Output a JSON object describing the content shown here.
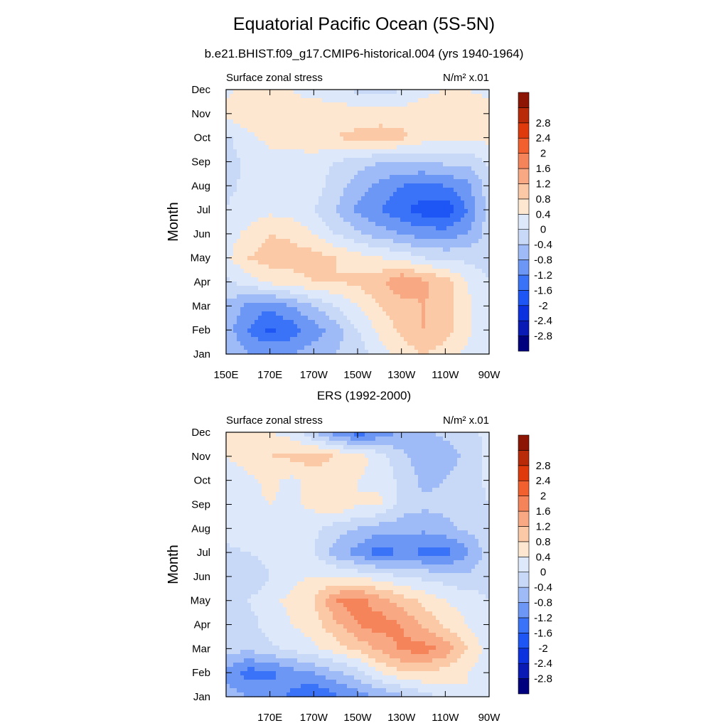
{
  "page": {
    "title": "Equatorial Pacific Ocean (5S-5N)",
    "top_subtitle": "b.e21.BHIST.f09_g17.CMIP6-historical.004 (yrs 1940-1964)",
    "bottom_subtitle": "ERS (1992-2000)"
  },
  "colorbar": {
    "levels": [
      "-2.8",
      "-2.4",
      "-2",
      "-1.6",
      "-1.2",
      "-0.8",
      "-0.4",
      "0",
      "0.4",
      "0.8",
      "1.2",
      "1.6",
      "2",
      "2.4",
      "2.8"
    ],
    "colors": [
      "#00007f",
      "#0a1ab4",
      "#0c32e0",
      "#1e55f5",
      "#3a73f7",
      "#6d97f5",
      "#9fbbf7",
      "#c8d9f8",
      "#dde9fa",
      "#fde7d0",
      "#fbc9a6",
      "#f8a882",
      "#f5845a",
      "#f2602f",
      "#de3a0c",
      "#b82a08",
      "#8c1504"
    ]
  },
  "chart_data": [
    {
      "type": "heatmap",
      "id": "model",
      "panel_title": "Surface zonal stress",
      "units": "N/m² x.01",
      "ylabel": "Month",
      "xlabel": "",
      "xlim": [
        150,
        270
      ],
      "x_ticks": [
        150,
        170,
        190,
        210,
        230,
        250,
        270
      ],
      "x_tick_labels": [
        "150E",
        "170E",
        "170W",
        "150W",
        "130W",
        "110W",
        "90W"
      ],
      "y_ticks": [
        "Jan",
        "Feb",
        "Mar",
        "Apr",
        "May",
        "Jun",
        "Jul",
        "Aug",
        "Sep",
        "Oct",
        "Nov",
        "Dec"
      ],
      "lon": [
        150,
        160,
        170,
        180,
        190,
        200,
        210,
        220,
        230,
        240,
        250,
        260,
        270
      ],
      "months": [
        "Jan",
        "Feb",
        "Mar",
        "Apr",
        "May",
        "Jun",
        "Jul",
        "Aug",
        "Sep",
        "Oct",
        "Nov",
        "Dec"
      ],
      "values": [
        [
          -0.4,
          -0.8,
          -0.8,
          -0.8,
          -0.6,
          -0.4,
          -0.2,
          0.2,
          0.6,
          0.8,
          0.6,
          0.3,
          0.0
        ],
        [
          -0.6,
          -1.2,
          -1.7,
          -1.4,
          -1.0,
          -0.6,
          0.0,
          0.5,
          0.9,
          1.2,
          1.0,
          0.5,
          0.1
        ],
        [
          -0.5,
          -0.9,
          -1.1,
          -0.8,
          -0.4,
          0.0,
          0.4,
          0.8,
          1.0,
          1.2,
          1.0,
          0.5,
          0.1
        ],
        [
          -0.1,
          0.2,
          0.5,
          0.6,
          0.8,
          0.8,
          0.9,
          1.1,
          1.6,
          1.3,
          1.0,
          0.4,
          0.0
        ],
        [
          0.3,
          0.8,
          1.0,
          1.0,
          1.0,
          0.8,
          0.6,
          0.4,
          0.3,
          0.0,
          -0.1,
          -0.1,
          -0.2
        ],
        [
          0.2,
          0.5,
          0.8,
          0.7,
          0.4,
          0.0,
          -0.3,
          -0.6,
          -0.8,
          -1.0,
          -1.0,
          -0.8,
          -0.2
        ],
        [
          0.0,
          0.2,
          0.3,
          0.2,
          0.0,
          -0.4,
          -0.9,
          -1.2,
          -1.5,
          -1.8,
          -1.9,
          -1.2,
          -0.2
        ],
        [
          -0.1,
          0.1,
          0.2,
          0.2,
          0.2,
          -0.2,
          -0.6,
          -0.9,
          -1.2,
          -1.3,
          -1.2,
          -0.9,
          -0.2
        ],
        [
          -0.2,
          0.1,
          0.3,
          0.3,
          0.2,
          0.0,
          -0.2,
          -0.4,
          -0.4,
          -0.4,
          -0.3,
          -0.3,
          0.1
        ],
        [
          -0.1,
          0.3,
          0.5,
          0.5,
          0.7,
          0.8,
          0.9,
          1.0,
          0.9,
          0.6,
          0.5,
          0.5,
          0.5
        ],
        [
          0.5,
          0.7,
          0.7,
          0.6,
          0.7,
          0.7,
          0.6,
          0.6,
          0.6,
          0.6,
          0.7,
          0.7,
          0.5
        ],
        [
          0.3,
          0.6,
          0.5,
          0.4,
          0.2,
          0.1,
          -0.1,
          -0.2,
          0.0,
          0.3,
          0.4,
          0.4,
          0.3
        ]
      ]
    },
    {
      "type": "heatmap",
      "id": "ers",
      "panel_title": "Surface zonal stress",
      "units": "N/m² x.01",
      "ylabel": "Month",
      "xlabel": "",
      "xlim": [
        150,
        270
      ],
      "x_ticks": [
        170,
        190,
        210,
        230,
        250,
        270
      ],
      "x_tick_labels": [
        "170E",
        "170W",
        "150W",
        "130W",
        "110W",
        "90W"
      ],
      "y_ticks": [
        "Jan",
        "Feb",
        "Mar",
        "Apr",
        "May",
        "Jun",
        "Jul",
        "Aug",
        "Sep",
        "Oct",
        "Nov",
        "Dec"
      ],
      "lon": [
        150,
        160,
        170,
        180,
        190,
        200,
        210,
        220,
        230,
        240,
        250,
        260,
        270
      ],
      "months": [
        "Jan",
        "Feb",
        "Mar",
        "Apr",
        "May",
        "Jun",
        "Jul",
        "Aug",
        "Sep",
        "Oct",
        "Nov",
        "Dec"
      ],
      "values": [
        [
          -0.6,
          -0.8,
          -1.0,
          -1.3,
          -1.6,
          -1.3,
          -1.0,
          -0.8,
          -0.5,
          -0.2,
          0.1,
          0.4,
          0.2
        ],
        [
          -0.9,
          -1.4,
          -1.3,
          -1.0,
          -0.8,
          -0.5,
          -0.2,
          0.4,
          0.7,
          0.8,
          0.6,
          0.4,
          0.1
        ],
        [
          -0.2,
          -0.3,
          -0.1,
          0.1,
          0.3,
          0.6,
          0.9,
          1.3,
          1.7,
          1.8,
          1.5,
          0.8,
          0.2
        ],
        [
          -0.4,
          -0.2,
          0.2,
          0.4,
          0.6,
          1.1,
          1.6,
          1.8,
          1.6,
          1.1,
          0.7,
          0.4,
          0.1
        ],
        [
          -0.3,
          0.0,
          0.3,
          0.5,
          0.8,
          1.6,
          1.8,
          1.4,
          1.0,
          0.7,
          0.4,
          0.2,
          0.0
        ],
        [
          -0.2,
          -0.4,
          0.0,
          0.3,
          0.4,
          0.4,
          0.3,
          0.2,
          0.0,
          -0.1,
          -0.2,
          -0.3,
          -0.1
        ],
        [
          -0.1,
          0.0,
          0.2,
          0.2,
          0.0,
          -0.6,
          -1.0,
          -1.4,
          -1.2,
          -1.3,
          -1.4,
          -0.9,
          -0.2
        ],
        [
          0.2,
          0.3,
          0.4,
          0.3,
          0.1,
          -0.2,
          -0.4,
          -0.6,
          -0.6,
          -0.7,
          -0.5,
          -0.3,
          -0.1
        ],
        [
          0.1,
          0.3,
          0.4,
          0.3,
          0.5,
          0.8,
          0.4,
          0.5,
          -0.2,
          -0.3,
          -0.3,
          -0.2,
          0.0
        ],
        [
          0.1,
          0.3,
          0.5,
          0.3,
          0.6,
          0.4,
          0.4,
          0.3,
          -0.1,
          -0.5,
          -0.4,
          -0.2,
          0.1
        ],
        [
          0.4,
          0.6,
          0.8,
          0.9,
          1.0,
          0.8,
          0.6,
          0.2,
          -0.3,
          -0.6,
          -0.6,
          -0.3,
          0.1
        ],
        [
          0.6,
          0.7,
          0.4,
          0.2,
          -0.4,
          -1.0,
          -1.5,
          -1.1,
          -0.7,
          -0.5,
          -0.3,
          -0.1,
          0.1
        ]
      ]
    }
  ]
}
